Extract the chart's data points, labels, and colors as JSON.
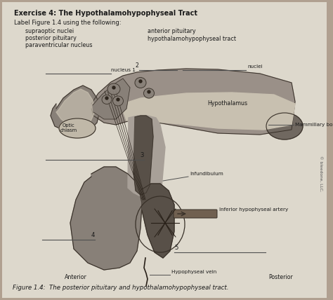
{
  "background_color": "#b0a090",
  "page_color": "#ddd8cc",
  "title": "Exercise 4: The Hypothalamohypophyseal Tract",
  "instruction": "Label Figure 1.4 using the following:",
  "terms_left": [
    "supraoptic nuclei",
    "posterior pituitary",
    "paraventricular nucleus"
  ],
  "terms_right": [
    "anterior pituitary",
    "hypothalamohypophyseal tract"
  ],
  "figure_caption": "Figure 1.4:  The posterior pituitary and hypothalamohypophyseal tract.",
  "labels_diagram": {
    "nucleus1": "nucleus 1",
    "nucleus2": "2",
    "nuclei_right": "nuclei",
    "hypothalamus": "Hypothalamus",
    "optic_chiasm": "Optic\nchiasm",
    "mammillary_body": "Mammillary body",
    "infundibulum": "Infundibulum",
    "inferior_hypo_artery": "Inferior hypophyseal artery",
    "hypophyseal_vein": "Hypophyseal vein",
    "num3": "3",
    "num4": "4",
    "num5": "5",
    "anterior": "Anterior",
    "posterior": "Posterior",
    "copyright": "© bleedone, LLC."
  },
  "diagram_colors": {
    "hypo_dark": "#888078",
    "hypo_mid": "#9a9088",
    "hypo_light": "#b8b0a0",
    "hypo_lighter": "#c8c0b0",
    "border": "#383028",
    "mammillary": "#706860",
    "stalk_dark": "#585048",
    "stalk_light": "#a8a098",
    "pituitary_ant": "#888078",
    "pituitary_post": "#706860",
    "optic": "#c0b8a8",
    "nerve": "#282018",
    "vein": "#383028"
  }
}
